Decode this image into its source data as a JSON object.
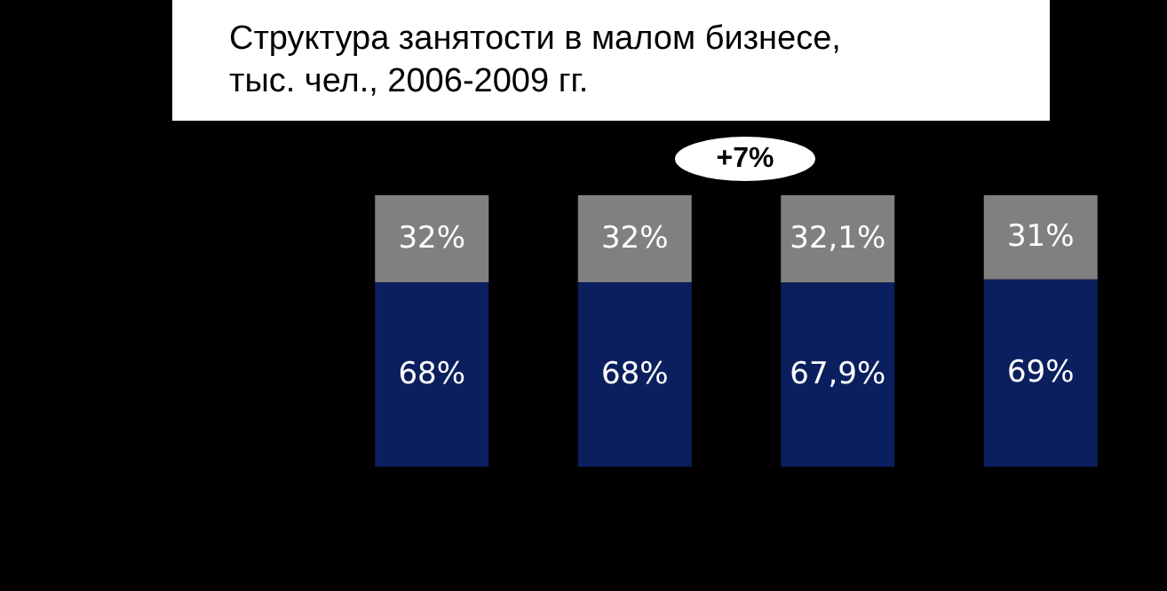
{
  "chart_data": {
    "type": "bar",
    "title": "Структура занятости в малом бизнесе,\nтыс. чел., 2006-2009 гг.",
    "annotations": [
      "+7%"
    ],
    "categories": [
      null,
      null,
      null,
      null
    ],
    "stacked": true,
    "tick_labels": false,
    "series": [
      {
        "color": "#0b1f5e",
        "values": [
          68,
          68,
          67.9,
          69
        ],
        "value_labels": [
          "68%",
          "68%",
          "67,9%",
          "69%"
        ]
      },
      {
        "color": "#808080",
        "values": [
          32,
          32,
          32.1,
          31
        ],
        "value_labels": [
          "32%",
          "32%",
          "32,1%",
          "31%"
        ]
      }
    ]
  }
}
